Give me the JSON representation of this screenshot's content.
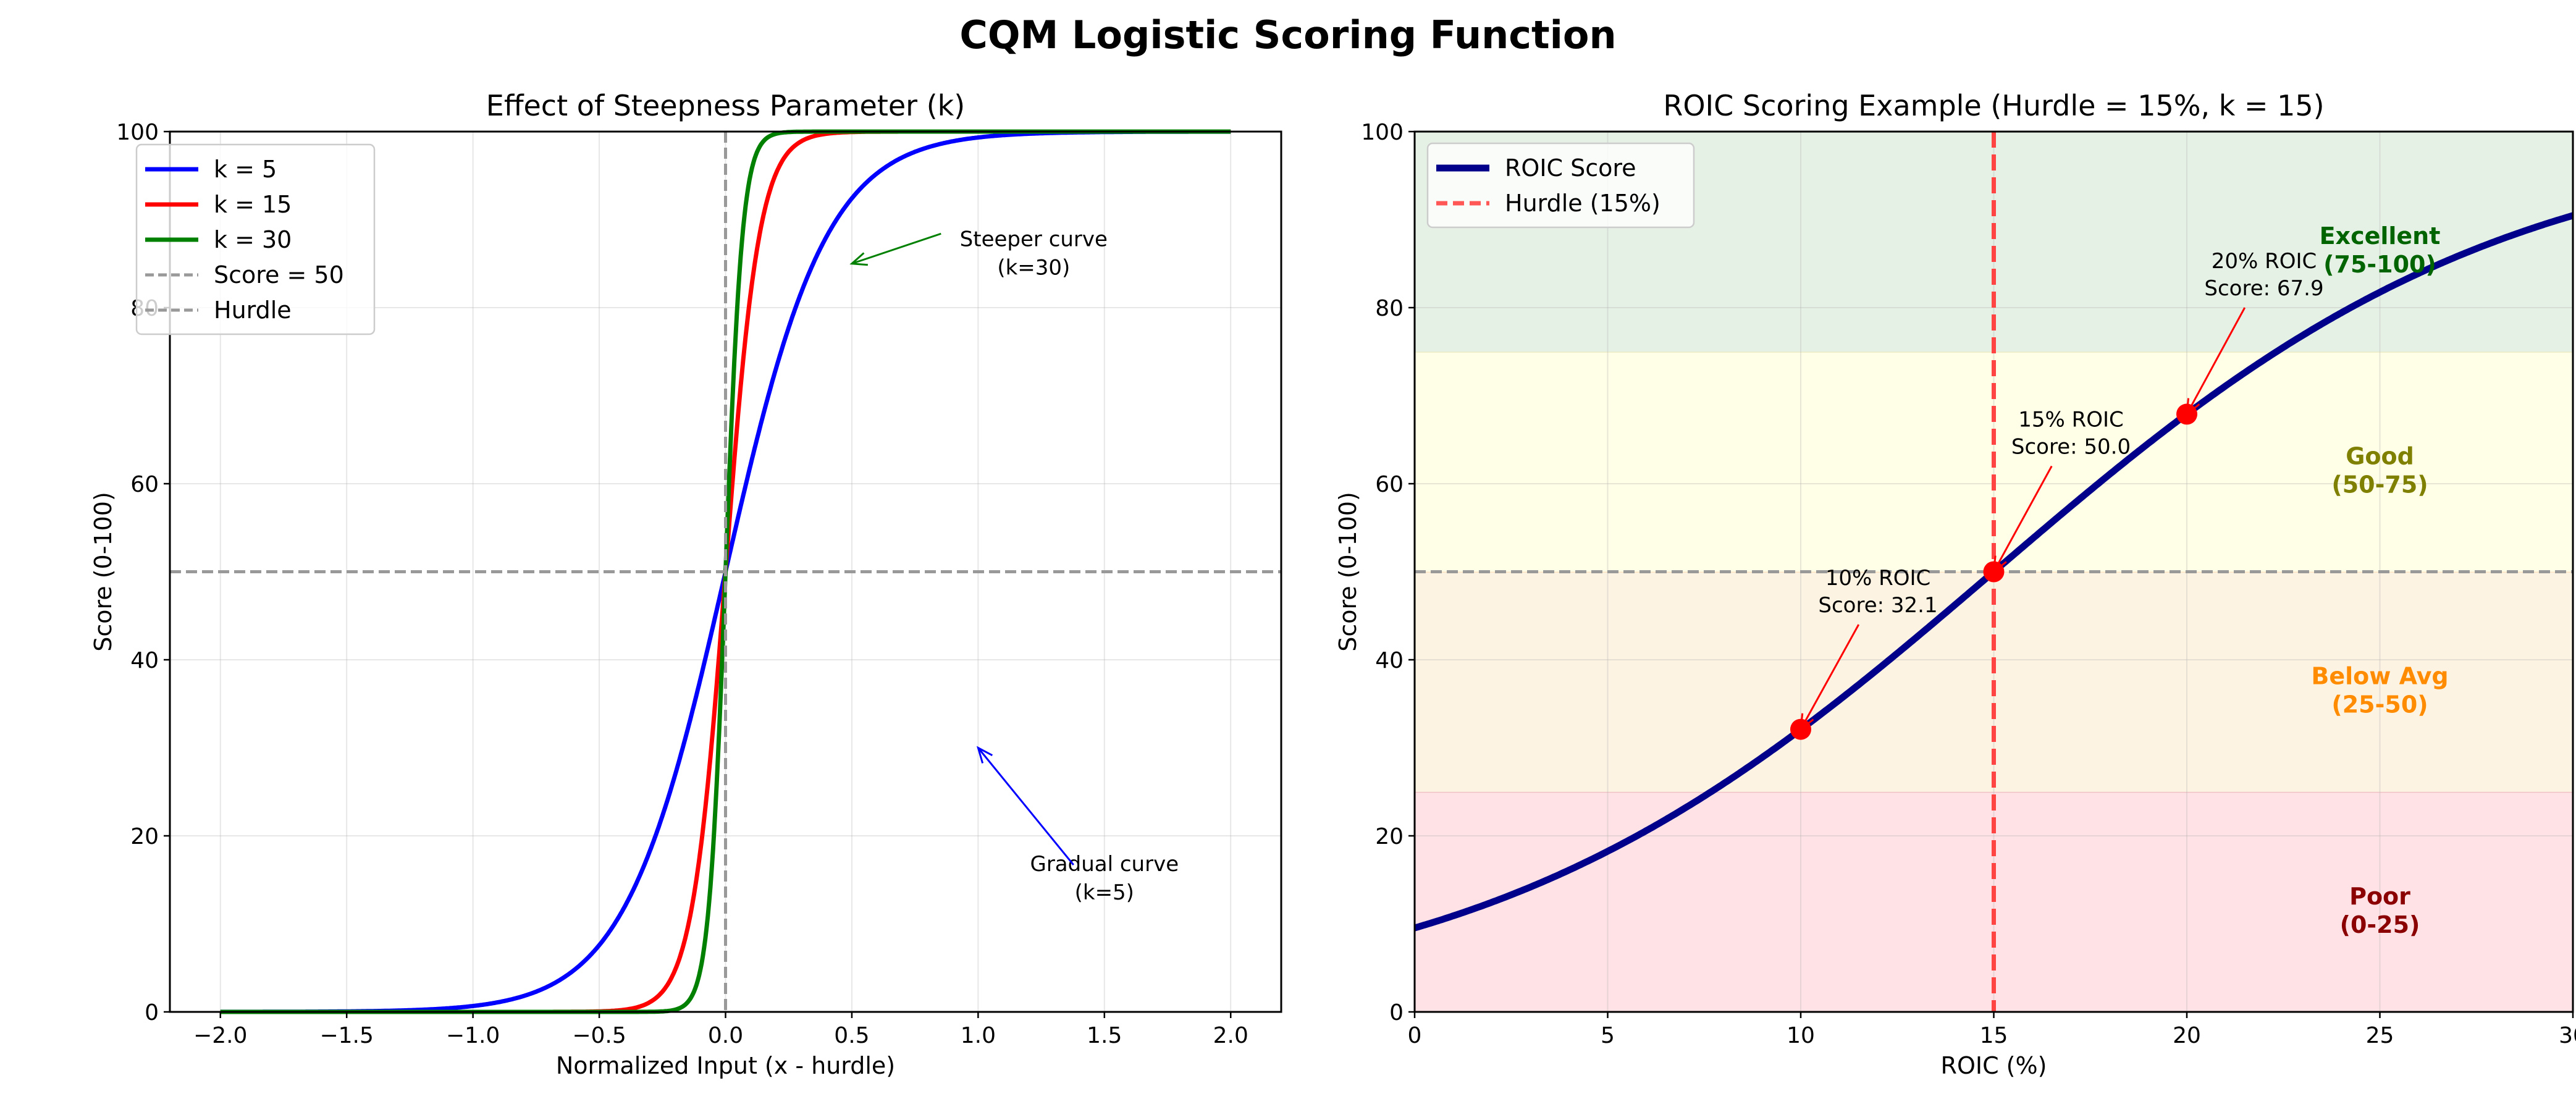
{
  "suptitle": "CQM Logistic Scoring Function",
  "chart_data": [
    {
      "type": "line",
      "title": "Effect of Steepness Parameter (k)",
      "xlabel": "Normalized Input (x - hurdle)",
      "ylabel": "Score (0-100)",
      "xlim": [
        -2.2,
        2.2
      ],
      "ylim": [
        0,
        100
      ],
      "xticks": [
        -2.0,
        -1.5,
        -1.0,
        -0.5,
        0.0,
        0.5,
        1.0,
        1.5,
        2.0
      ],
      "xtick_labels": [
        "−2.0",
        "−1.5",
        "−1.0",
        "−0.5",
        "0.0",
        "0.5",
        "1.0",
        "1.5",
        "2.0"
      ],
      "yticks": [
        0,
        20,
        40,
        60,
        80,
        100
      ],
      "grid": true,
      "function": "100/(1+exp(-k*x))",
      "x_range": [
        -2,
        2
      ],
      "series": [
        {
          "name": "k = 5",
          "k": 5,
          "color": "#0000ff"
        },
        {
          "name": "k = 15",
          "k": 15,
          "color": "#ff0000"
        },
        {
          "name": "k = 30",
          "k": 30,
          "color": "#008000"
        }
      ],
      "reference_lines": [
        {
          "name": "Score = 50",
          "orientation": "horizontal",
          "value": 50,
          "color": "#999999"
        },
        {
          "name": "Hurdle",
          "orientation": "vertical",
          "value": 0,
          "color": "#999999"
        }
      ],
      "legend": "upper-left",
      "annotations": [
        {
          "lines": [
            "Steeper curve",
            "(k=30)"
          ],
          "text_at": [
            1.22,
            87
          ],
          "arrow_to": [
            0.5,
            85
          ],
          "color": "#008000"
        },
        {
          "lines": [
            "Gradual curve",
            "(k=5)"
          ],
          "text_at": [
            1.5,
            16
          ],
          "arrow_to": [
            1.0,
            30
          ],
          "color": "#0000ff"
        }
      ]
    },
    {
      "type": "line",
      "title": "ROIC Scoring Example (Hurdle = 15%, k = 15)",
      "xlabel": "ROIC (%)",
      "ylabel": "Score (0-100)",
      "xlim": [
        0,
        30
      ],
      "ylim": [
        0,
        100
      ],
      "xticks": [
        0,
        5,
        10,
        15,
        20,
        25,
        30
      ],
      "yticks": [
        0,
        20,
        40,
        60,
        80,
        100
      ],
      "grid": true,
      "function": "100/(1+exp(-15*(x-15)/100))",
      "series": [
        {
          "name": "ROIC Score",
          "color": "#00008b"
        }
      ],
      "hurdle": {
        "name": "Hurdle (15%)",
        "value": 15,
        "color": "#ff4444"
      },
      "score50_line": 50,
      "legend": "upper-left",
      "bands": [
        {
          "lines": [
            "Poor",
            "(0-25)"
          ],
          "range": [
            0,
            25
          ],
          "fill": "#ffe2e5",
          "label_color": "#8b0000"
        },
        {
          "lines": [
            "Below Avg",
            "(25-50)"
          ],
          "range": [
            25,
            50
          ],
          "fill": "#fdf3e3",
          "label_color": "#ff8c00"
        },
        {
          "lines": [
            "Good",
            "(50-75)"
          ],
          "range": [
            50,
            75
          ],
          "fill": "#fffee6",
          "label_color": "#808000"
        },
        {
          "lines": [
            "Excellent",
            "(75-100)"
          ],
          "range": [
            75,
            100
          ],
          "fill": "#e6f1e6",
          "label_color": "#006400"
        }
      ],
      "points": [
        {
          "x": 10,
          "y": 32.1,
          "lines": [
            "10% ROIC",
            "Score: 32.1"
          ],
          "text_at": [
            12,
            48.5
          ]
        },
        {
          "x": 15,
          "y": 50.0,
          "lines": [
            "15% ROIC",
            "Score: 50.0"
          ],
          "text_at": [
            17,
            66.5
          ]
        },
        {
          "x": 20,
          "y": 67.9,
          "lines": [
            "20% ROIC",
            "Score: 67.9"
          ],
          "text_at": [
            22,
            84.5
          ]
        }
      ]
    }
  ]
}
